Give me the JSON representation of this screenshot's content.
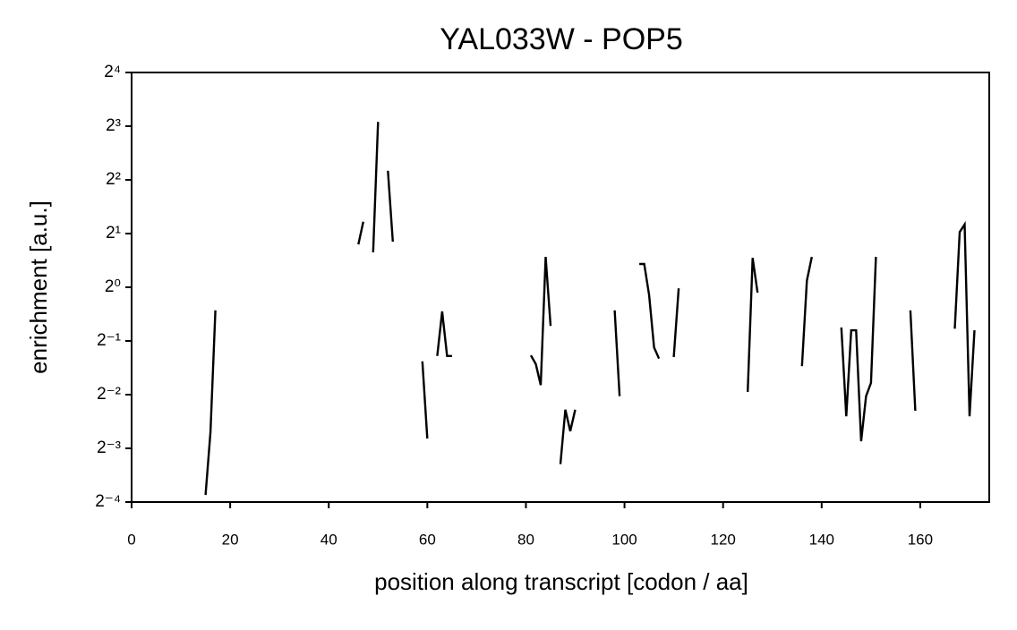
{
  "chart_data": {
    "type": "line",
    "title": "YAL033W - POP5",
    "x_label": "position along transcript [codon / aa]",
    "y_label": "enrichment [a.u.]",
    "color": "#000000",
    "y_log_base": 2,
    "grid": false,
    "x": [
      15,
      16,
      17,
      18,
      46,
      47,
      48,
      49,
      50,
      51,
      52,
      53,
      54,
      59,
      60,
      61,
      62,
      63,
      64,
      65,
      66,
      81,
      82,
      83,
      84,
      85,
      86,
      87,
      88,
      89,
      90,
      91,
      98,
      99,
      100,
      103,
      104,
      105,
      106,
      107,
      108,
      110,
      111,
      112,
      125,
      126,
      127,
      128,
      136,
      137,
      138,
      139,
      144,
      145,
      146,
      147,
      148,
      149,
      150,
      151,
      152,
      158,
      159,
      160,
      167,
      168,
      169,
      170,
      171
    ],
    "values": [
      0.0685,
      0.154,
      0.742,
      null,
      1.74,
      2.33,
      null,
      1.57,
      8.46,
      null,
      4.5,
      1.8,
      null,
      0.384,
      0.142,
      null,
      0.412,
      0.732,
      0.412,
      0.412,
      null,
      0.415,
      0.371,
      0.283,
      1.48,
      0.607,
      null,
      0.102,
      0.206,
      0.156,
      0.206,
      null,
      0.742,
      0.245,
      null,
      1.35,
      1.35,
      0.901,
      0.46,
      0.398,
      null,
      0.406,
      0.986,
      null,
      0.259,
      1.46,
      0.933,
      null,
      0.361,
      1.09,
      1.48,
      null,
      0.595,
      0.189,
      0.574,
      0.574,
      0.137,
      0.245,
      0.291,
      1.48,
      null,
      0.742,
      0.203,
      null,
      0.586,
      2.04,
      2.25,
      0.189,
      0.574
    ],
    "xlim": [
      0,
      174
    ],
    "xticks": [
      0,
      20,
      40,
      60,
      80,
      100,
      120,
      140,
      160
    ],
    "ylim": [
      0.0625,
      16
    ],
    "yticks": [
      {
        "value": 0.0625,
        "label": "2⁻⁴"
      },
      {
        "value": 0.125,
        "label": "2⁻³"
      },
      {
        "value": 0.25,
        "label": "2⁻²"
      },
      {
        "value": 0.5,
        "label": "2⁻¹"
      },
      {
        "value": 1,
        "label": "2⁰"
      },
      {
        "value": 2,
        "label": "2¹"
      },
      {
        "value": 4,
        "label": "2²"
      },
      {
        "value": 8,
        "label": "2³"
      },
      {
        "value": 16,
        "label": "2⁴"
      }
    ]
  }
}
